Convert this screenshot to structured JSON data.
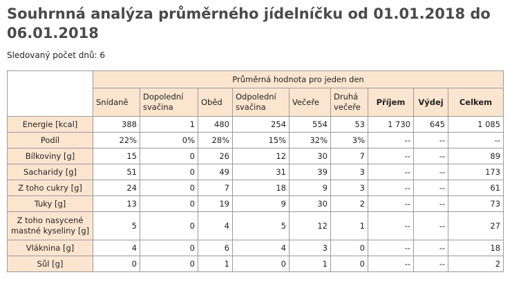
{
  "page": {
    "title": "Souhrnná analýza průměrného jídelníčku od 01.01.2018 do 06.01.2018",
    "days_label": "Sledovaný počet dnů: 6"
  },
  "table": {
    "group_header": "Průměrná hodnota pro jeden den",
    "columns": [
      "Snídaně",
      "Dopolední svačina",
      "Oběd",
      "Odpolední svačina",
      "Večeře",
      "Druhá večeře",
      "Příjem",
      "Výdej",
      "Celkem"
    ],
    "rows": [
      {
        "label": "Energie [kcal]",
        "values": [
          "388",
          "1",
          "480",
          "254",
          "554",
          "53",
          "1 730",
          "645",
          "1 085"
        ]
      },
      {
        "label": "Podíl",
        "values": [
          "22%",
          "0%",
          "28%",
          "15%",
          "32%",
          "3%",
          "--",
          "--",
          "--"
        ]
      },
      {
        "label": "Bílkoviny [g]",
        "values": [
          "15",
          "0",
          "26",
          "12",
          "30",
          "7",
          "--",
          "--",
          "89"
        ]
      },
      {
        "label": "Sacharidy [g]",
        "values": [
          "51",
          "0",
          "49",
          "31",
          "39",
          "3",
          "--",
          "--",
          "173"
        ]
      },
      {
        "label": "Z toho cukry [g]",
        "values": [
          "24",
          "0",
          "7",
          "18",
          "9",
          "3",
          "--",
          "--",
          "61"
        ]
      },
      {
        "label": "Tuky [g]",
        "values": [
          "13",
          "0",
          "19",
          "9",
          "30",
          "2",
          "--",
          "--",
          "73"
        ]
      },
      {
        "label": "Z toho nasycené mastné kyseliny [g]",
        "values": [
          "5",
          "0",
          "4",
          "5",
          "12",
          "1",
          "--",
          "--",
          "27"
        ]
      },
      {
        "label": "Vláknina [g]",
        "values": [
          "4",
          "0",
          "6",
          "4",
          "3",
          "0",
          "--",
          "--",
          "18"
        ]
      },
      {
        "label": "Sůl [g]",
        "values": [
          "0",
          "0",
          "1",
          "0",
          "1",
          "0",
          "--",
          "--",
          "2"
        ]
      }
    ]
  }
}
